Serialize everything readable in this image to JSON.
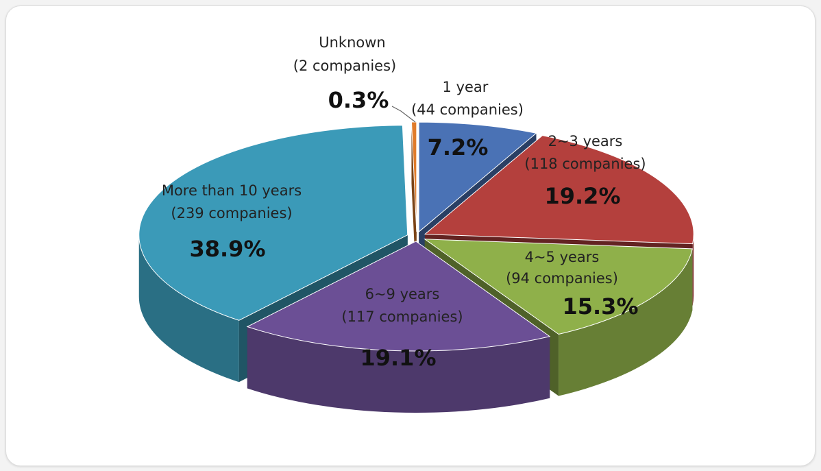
{
  "chart_data": {
    "type": "pie",
    "style": "3d-exploded",
    "slices": [
      {
        "key": "y1",
        "label": "1 year",
        "count_label": "(44 companies)",
        "value": 7.2,
        "percent_label": "7.2%",
        "color": "#4a72b5"
      },
      {
        "key": "y23",
        "label": "2~3 years",
        "count_label": "(118 companies)",
        "value": 19.2,
        "percent_label": "19.2%",
        "color": "#b4403d"
      },
      {
        "key": "y45",
        "label": "4~5 years",
        "count_label": "(94 companies)",
        "value": 15.3,
        "percent_label": "15.3%",
        "color": "#8fb04a"
      },
      {
        "key": "y69",
        "label": "6~9 years",
        "count_label": "(117 companies)",
        "value": 19.1,
        "percent_label": "19.1%",
        "color": "#6b4f95"
      },
      {
        "key": "y10",
        "label": "More than 10 years",
        "count_label": "(239 companies)",
        "value": 38.9,
        "percent_label": "38.9%",
        "color": "#3b9ab8"
      },
      {
        "key": "unk",
        "label": "Unknown",
        "count_label": "(2 companies)",
        "value": 0.3,
        "percent_label": "0.3%",
        "color": "#e07b2a"
      }
    ]
  }
}
